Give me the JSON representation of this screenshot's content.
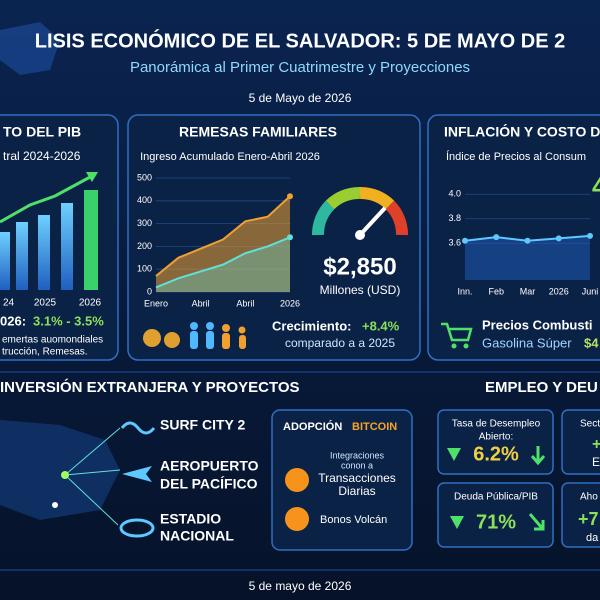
{
  "header": {
    "title": "LISIS ECONÓMICO DE EL SALVADOR: 5 DE MAYO DE 2",
    "subtitle": "Panorámica al Primer Cuatrimestre y Proyecciones",
    "date": "5 de Mayo de 2026"
  },
  "gdp": {
    "title": "TO DEL PIB",
    "subtitle": "tral 2024-2026",
    "axis_labels": [
      "24",
      "2025",
      "2026"
    ],
    "projection_label": "026:",
    "projection_value": "3.1% - 3.5%",
    "drivers": [
      "emertas auomondiales",
      "trucción, Remesas."
    ]
  },
  "remittances": {
    "title": "REMESAS FAMILIARES",
    "subtitle": "Ingreso Acumulado Enero-Abril 2026",
    "chart": {
      "type": "area",
      "categories": [
        "Enero",
        null,
        "Abril",
        null,
        "Abril",
        null,
        "2026"
      ],
      "ylim": [
        0,
        500
      ],
      "yticks": [
        0,
        100,
        200,
        300,
        400,
        500
      ],
      "series": [
        {
          "color": "#f0a030",
          "values": [
            70,
            150,
            190,
            230,
            310,
            330,
            420
          ]
        },
        {
          "color": "#5fe0d8",
          "values": [
            20,
            60,
            90,
            120,
            170,
            200,
            240
          ]
        }
      ]
    },
    "amount": "$2,850",
    "unit": "Millones (USD)",
    "growth_label": "Crecimiento:",
    "growth_value": "+8.4%",
    "comparison": "comparado a a 2025"
  },
  "inflation": {
    "title": "INFLACIÓN Y COSTO D",
    "subtitle": "Índice de Precios al Consum",
    "big_value": "4",
    "chart": {
      "type": "line",
      "categories": [
        "Inn.",
        "Feb",
        "Mar",
        "2026",
        "Juni"
      ],
      "ylim": [
        3.3,
        4.1
      ],
      "yticks": [
        {
          "value": 4.0,
          "label": "4.0"
        },
        3.8,
        3.6
      ],
      "series": [
        {
          "color": "#5fc8ff",
          "values": [
            3.62,
            3.65,
            3.62,
            3.64,
            3.66
          ]
        }
      ]
    },
    "fuel_title": "Precios Combusti",
    "fuel_label": "Gasolina Súper",
    "fuel_value": "$4"
  },
  "investment": {
    "title": "INVERSIÓN EXTRANJERA Y PROYECTOS",
    "projects": [
      [
        "SURF CITY 2"
      ],
      [
        "AEROPUERTO",
        "DEL PACÍFICO"
      ],
      [
        "ESTADIO",
        "NACIONAL"
      ]
    ],
    "bitcoin": {
      "title_1": "ADOPCIÓN",
      "title_2": "BITCOIN",
      "integrations": [
        "Integraciones",
        "conon a"
      ],
      "transactions": [
        "Transacciones",
        "Diarias"
      ],
      "bonds": "Bonos Volcán"
    }
  },
  "employment": {
    "title": "EMPLEO Y DEU",
    "unemployment": {
      "label": [
        "Tasa de Desempleo",
        "Abierto:"
      ],
      "value": "6.2%"
    },
    "sector": {
      "label": "Sect",
      "lines": [
        "+",
        "E"
      ]
    },
    "debt": {
      "label": "Deuda Pública/PIB",
      "value": "71%"
    },
    "savings": {
      "label": "Aho",
      "lines": [
        "+7",
        "da"
      ]
    }
  },
  "footer": {
    "date": "5 de mayo de 2026"
  }
}
